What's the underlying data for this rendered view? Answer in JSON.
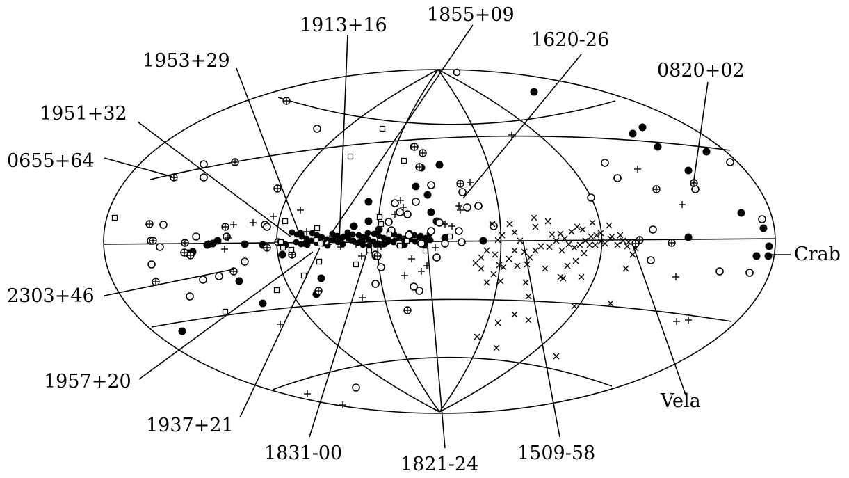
{
  "labels": {
    "l1855": "1855+09",
    "l1913": "1913+16",
    "l1620": "1620-26",
    "l1953": "1953+29",
    "l0820": "0820+02",
    "l1951": "1951+32",
    "l0655": "0655+64",
    "crab": "Crab",
    "l2303": "2303+46",
    "l1957": "1957+20",
    "vela": "Vela",
    "l1937": "1937+21",
    "l1831": "1831-00",
    "l1821": "1821-24",
    "l1509": "1509-58"
  },
  "marker_types": [
    "filled-circle",
    "open-circle",
    "circle-plus",
    "open-square",
    "cross",
    "plus"
  ],
  "stroke_color": "#000000",
  "background_color": "#ffffff"
}
